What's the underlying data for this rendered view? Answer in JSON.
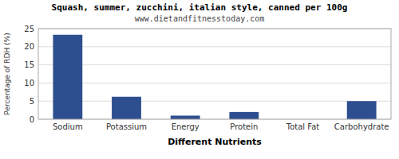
{
  "chart_data": {
    "type": "bar",
    "title": "Squash, summer, zucchini, italian style, canned per 100g",
    "subtitle": "www.dietandfitnesstoday.com",
    "xlabel": "Different Nutrients",
    "ylabel": "Percentage of RDH (%)",
    "categories": [
      "Sodium",
      "Potassium",
      "Energy",
      "Protein",
      "Total Fat",
      "Carbohydrate"
    ],
    "values": [
      23.3,
      6.2,
      1.0,
      2.0,
      0.0,
      5.0
    ],
    "color": "#2e4f8f",
    "ylim": [
      0,
      25
    ],
    "yticks": [
      0,
      5,
      10,
      15,
      20,
      25
    ],
    "grid": true
  }
}
